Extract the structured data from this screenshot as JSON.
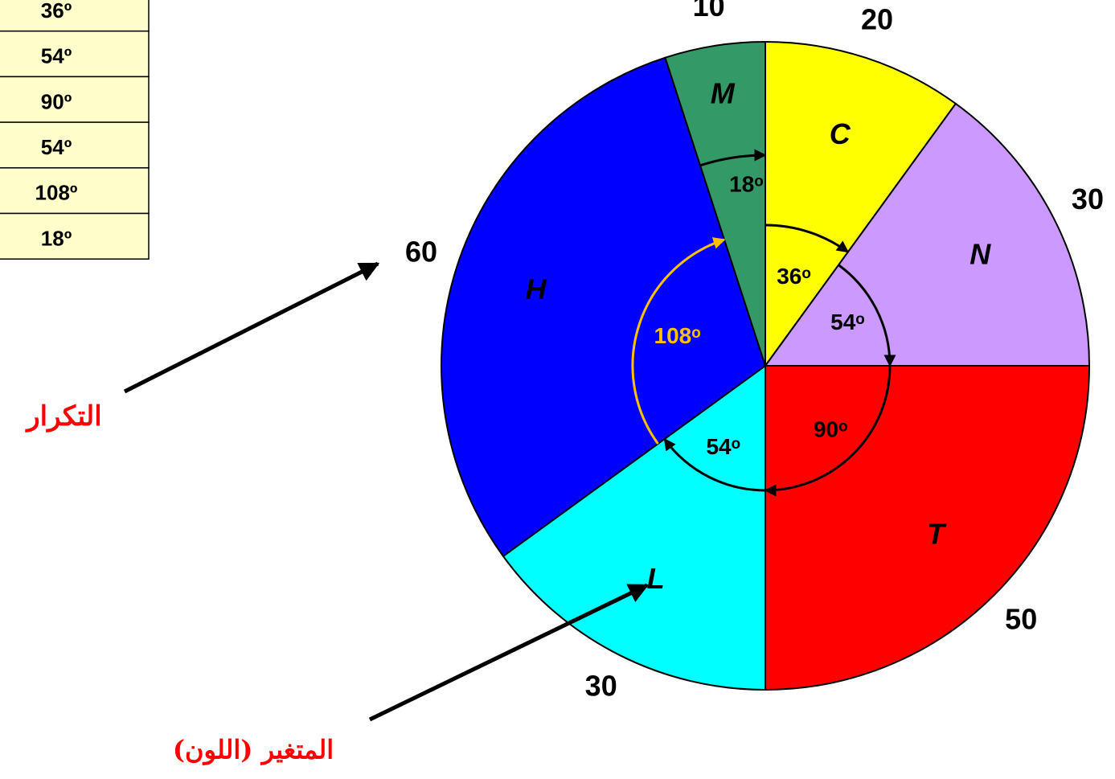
{
  "chart_data": {
    "type": "pie",
    "categories": [
      "C",
      "N",
      "T",
      "L",
      "H",
      "M"
    ],
    "values": [
      20,
      30,
      50,
      30,
      60,
      10
    ],
    "colors": [
      "#ffff00",
      "#cc99ff",
      "#ff0000",
      "#00ffff",
      "#0000ff",
      "#339966"
    ],
    "angle_labels": [
      "36ᵒ",
      "54ᵒ",
      "90ᵒ",
      "54ᵒ",
      "108ᵒ",
      "18ᵒ"
    ],
    "annotations": [
      "التكرار",
      "المتغير (اللون)"
    ]
  },
  "table": {
    "rows": [
      "36º",
      "54º",
      "90º",
      "54º",
      "108º",
      "18º"
    ]
  }
}
